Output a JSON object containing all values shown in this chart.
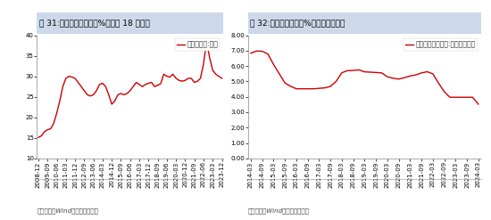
{
  "chart1": {
    "title": "图 31:中国房价收入比（%）回到 18 年水平",
    "legend": "房价收入比:中国",
    "line_color": "#cc0000",
    "ylim": [
      10,
      40
    ],
    "yticks": [
      10,
      15,
      20,
      25,
      30,
      35,
      40
    ],
    "source": "数据来源：Wind，中信建投证券",
    "x": [
      "2008-12",
      "2009-03",
      "2009-06",
      "2009-09",
      "2009-12",
      "2010-03",
      "2010-06",
      "2010-09",
      "2010-12",
      "2011-03",
      "2011-06",
      "2011-09",
      "2011-12",
      "2012-03",
      "2012-06",
      "2012-09",
      "2012-12",
      "2013-03",
      "2013-06",
      "2013-09",
      "2013-12",
      "2014-03",
      "2014-06",
      "2014-09",
      "2014-12",
      "2015-03",
      "2015-06",
      "2015-09",
      "2015-12",
      "2016-03",
      "2016-06",
      "2016-09",
      "2016-12",
      "2017-03",
      "2017-06",
      "2017-09",
      "2017-12",
      "2018-03",
      "2018-06",
      "2018-09",
      "2018-12",
      "2019-03",
      "2019-06",
      "2019-09",
      "2019-12",
      "2020-03",
      "2020-06",
      "2020-09",
      "2020-12",
      "2021-03",
      "2021-06",
      "2021-09",
      "2021-12",
      "2022-03",
      "2022-06",
      "2022-09",
      "2022-12",
      "2023-03",
      "2023-06",
      "2023-09",
      "2023-12"
    ],
    "y": [
      15.1,
      15.5,
      16.5,
      17.0,
      17.2,
      18.5,
      21.0,
      24.0,
      27.5,
      29.5,
      30.0,
      29.8,
      29.5,
      28.5,
      27.5,
      26.5,
      25.5,
      25.2,
      25.5,
      26.5,
      28.0,
      28.3,
      27.5,
      25.5,
      23.2,
      24.0,
      25.5,
      25.8,
      25.5,
      25.8,
      26.5,
      27.5,
      28.5,
      28.0,
      27.5,
      28.0,
      28.3,
      28.5,
      27.5,
      27.8,
      28.2,
      30.5,
      30.0,
      29.8,
      30.5,
      29.5,
      29.0,
      28.8,
      29.0,
      29.5,
      29.5,
      28.5,
      28.8,
      29.5,
      33.0,
      38.5,
      34.5,
      31.5,
      30.5,
      30.0,
      29.5
    ],
    "xticks_show": [
      "2008-12",
      "2009-09",
      "2010-06",
      "2011-03",
      "2011-12",
      "2012-09",
      "2013-06",
      "2014-03",
      "2014-12",
      "2015-09",
      "2016-06",
      "2017-03",
      "2017-12",
      "2018-09",
      "2019-06",
      "2020-03",
      "2020-12",
      "2021-09",
      "2022-06",
      "2023-03",
      "2023-12"
    ]
  },
  "chart2": {
    "title": "图 32:居民贷款利率（%）处于下行通道",
    "legend": "贷款加权平均利率:个人住房贷款",
    "line_color": "#cc0000",
    "ylim": [
      0,
      8.0
    ],
    "yticks": [
      0.0,
      1.0,
      2.0,
      3.0,
      4.0,
      5.0,
      6.0,
      7.0,
      8.0
    ],
    "source": "数据来源：Wind，中信建投证券",
    "x": [
      "2014-03",
      "2014-06",
      "2014-09",
      "2014-12",
      "2015-03",
      "2015-06",
      "2015-09",
      "2015-12",
      "2016-03",
      "2016-06",
      "2016-09",
      "2016-12",
      "2017-03",
      "2017-06",
      "2017-09",
      "2017-12",
      "2018-03",
      "2018-06",
      "2018-09",
      "2018-12",
      "2019-03",
      "2019-06",
      "2019-09",
      "2019-12",
      "2020-03",
      "2020-06",
      "2020-09",
      "2020-12",
      "2021-03",
      "2021-06",
      "2021-09",
      "2021-12",
      "2022-03",
      "2022-06",
      "2022-09",
      "2022-12",
      "2023-03",
      "2023-06",
      "2023-09",
      "2023-12",
      "2024-03"
    ],
    "y": [
      6.83,
      6.97,
      6.96,
      6.78,
      6.1,
      5.5,
      4.9,
      4.68,
      4.52,
      4.52,
      4.52,
      4.52,
      4.55,
      4.58,
      4.68,
      5.0,
      5.56,
      5.7,
      5.71,
      5.75,
      5.62,
      5.6,
      5.58,
      5.55,
      5.3,
      5.21,
      5.15,
      5.24,
      5.35,
      5.42,
      5.55,
      5.63,
      5.49,
      4.89,
      4.34,
      3.97,
      3.97,
      3.97,
      3.97,
      3.97,
      3.52
    ],
    "xticks_show": [
      "2014-03",
      "2014-09",
      "2015-03",
      "2015-09",
      "2016-03",
      "2016-09",
      "2017-03",
      "2017-09",
      "2018-03",
      "2018-09",
      "2019-03",
      "2019-09",
      "2020-03",
      "2020-09",
      "2021-03",
      "2021-09",
      "2022-03",
      "2022-09",
      "2023-03",
      "2023-09",
      "2024-03"
    ]
  },
  "bg_color": "#ffffff",
  "title_bg_color": "#cdd9ea",
  "border_color": "#000000",
  "font_size_title": 6.5,
  "font_size_tick": 5.0,
  "font_size_legend": 5.5,
  "font_size_source": 5.0,
  "line_width": 1.0
}
